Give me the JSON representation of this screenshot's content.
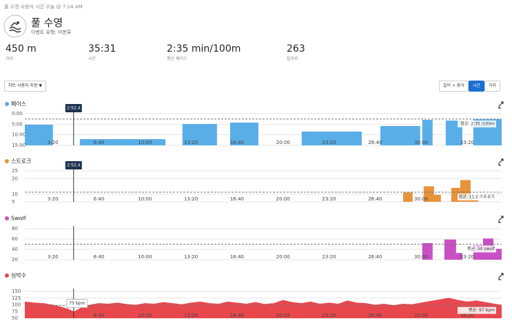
{
  "header": {
    "breadcrumb": "풀 수영",
    "breadcrumb_time": "사용자 시간 오늘 @ 7:14 AM",
    "title": "풀 수영",
    "event_type": "이벤트 유형: 미분류"
  },
  "stats": [
    {
      "value": "450 m",
      "label": "거리"
    },
    {
      "value": "35:31",
      "label": "시간"
    },
    {
      "value": "2:35 min/100m",
      "label": "평균 페이스"
    },
    {
      "value": "263",
      "label": "칼로리"
    }
  ],
  "controls": {
    "customize": "차트 사용자 지정 ▼",
    "toggles": [
      "길이 + 휴식",
      "시간",
      "거리"
    ],
    "active_toggle": 1
  },
  "chart_data": [
    {
      "type": "bar",
      "name": "페이스",
      "color": "#5aaee8",
      "y_inverted": true,
      "xlim": [
        78,
        2150
      ],
      "xticks": [
        {
          "value": 200,
          "label": "3:20"
        },
        {
          "value": 400,
          "label": "6:40"
        },
        {
          "value": 600,
          "label": "10:00"
        },
        {
          "value": 800,
          "label": "13:20"
        },
        {
          "value": 1000,
          "label": "16:40"
        },
        {
          "value": 1200,
          "label": "20:00"
        },
        {
          "value": 1400,
          "label": "23:20"
        },
        {
          "value": 1600,
          "label": "26:40"
        },
        {
          "value": 1800,
          "label": "30:00"
        },
        {
          "value": 2000,
          "label": "33:20"
        }
      ],
      "ylim": [
        0,
        900
      ],
      "yticks": [
        {
          "value": 0,
          "label": "0:00"
        },
        {
          "value": 300,
          "label": "5:00"
        },
        {
          "value": 600,
          "label": "10:00"
        },
        {
          "value": 900,
          "label": "15:00"
        }
      ],
      "x_start": [
        78,
        317,
        763,
        970,
        1281,
        1623,
        1805,
        1907,
        2027
      ],
      "x_end": [
        200,
        689,
        913,
        1093,
        1542,
        1796,
        1850,
        1979,
        2150
      ],
      "values": [
        313,
        724,
        293,
        254,
        509,
        352,
        176,
        196,
        157
      ],
      "avg_value": 155,
      "avg_label": "평균: 2:35 /100m",
      "cursor": {
        "x": 290,
        "label": "2:52.4",
        "style": "dark"
      }
    },
    {
      "type": "bar",
      "name": "스트로크",
      "color": "#e8923a",
      "xlim": [
        78,
        2150
      ],
      "xticks": [
        {
          "value": 200,
          "label": "3:20"
        },
        {
          "value": 400,
          "label": "6:40"
        },
        {
          "value": 600,
          "label": "10:00"
        },
        {
          "value": 800,
          "label": "13:20"
        },
        {
          "value": 1000,
          "label": "16:40"
        },
        {
          "value": 1200,
          "label": "20:00"
        },
        {
          "value": 1400,
          "label": "23:20"
        },
        {
          "value": 1600,
          "label": "26:40"
        },
        {
          "value": 1800,
          "label": "30:00"
        },
        {
          "value": 2000,
          "label": "33:20"
        }
      ],
      "ylim": [
        5,
        25
      ],
      "yticks": [
        5,
        10,
        20,
        25
      ],
      "x_start": [
        1722,
        1811,
        1856,
        1931,
        1970,
        2015
      ],
      "x_end": [
        1763,
        1856,
        1886,
        1970,
        2015,
        2048
      ],
      "values": [
        11,
        15,
        9.5,
        14,
        19,
        6.5
      ],
      "avg_value": 11.2,
      "avg_label": "평균: 11.2 스트로크",
      "cursor": {
        "x": 290,
        "label": "2:52.4",
        "style": "dark"
      }
    },
    {
      "type": "bar",
      "name": "Swolf",
      "color": "#c94fc4",
      "xlim": [
        78,
        2150
      ],
      "xticks": [
        {
          "value": 200,
          "label": "3:20"
        },
        {
          "value": 400,
          "label": "6:40"
        },
        {
          "value": 600,
          "label": "10:00"
        },
        {
          "value": 800,
          "label": "13:20"
        },
        {
          "value": 1000,
          "label": "16:40"
        },
        {
          "value": 1200,
          "label": "20:00"
        },
        {
          "value": 1400,
          "label": "23:20"
        },
        {
          "value": 1600,
          "label": "26:40"
        },
        {
          "value": 1800,
          "label": "30:00"
        },
        {
          "value": 2000,
          "label": "33:20"
        }
      ],
      "ylim": [
        20,
        80
      ],
      "yticks": [
        20,
        40,
        60,
        80
      ],
      "x_start": [
        1805,
        1901,
        1952,
        2027,
        2069,
        2114
      ],
      "x_end": [
        1850,
        1952,
        1979,
        2069,
        2114,
        2150
      ],
      "values": [
        52,
        59,
        33,
        48,
        61,
        41
      ],
      "avg_value": 50,
      "avg_label": "평균: 50 swolf",
      "cursor": {
        "x": 290
      }
    },
    {
      "type": "area",
      "name": "심박수",
      "color": "#e8474e",
      "xlim": [
        78,
        2150
      ],
      "xticks": [
        {
          "value": 400,
          "label": "6:40"
        },
        {
          "value": 600,
          "label": "10:00"
        },
        {
          "value": 800,
          "label": "13:20"
        },
        {
          "value": 1000,
          "label": "16:40"
        },
        {
          "value": 1200,
          "label": "20:00"
        },
        {
          "value": 1400,
          "label": "23:20"
        },
        {
          "value": 1600,
          "label": "26:40"
        },
        {
          "value": 1800,
          "label": "30:00"
        },
        {
          "value": 2000,
          "label": "33:20"
        }
      ],
      "ylim": [
        50,
        150
      ],
      "yticks": [
        50,
        75,
        100,
        125,
        150
      ],
      "x": [
        78,
        120,
        160,
        200,
        240,
        270,
        290,
        320,
        360,
        400,
        440,
        480,
        520,
        560,
        600,
        640,
        680,
        720,
        760,
        800,
        840,
        880,
        920,
        960,
        1000,
        1040,
        1080,
        1120,
        1160,
        1200,
        1240,
        1280,
        1320,
        1360,
        1400,
        1440,
        1480,
        1520,
        1560,
        1600,
        1640,
        1680,
        1720,
        1760,
        1800,
        1840,
        1880,
        1920,
        1960,
        2000,
        2040,
        2080,
        2120,
        2150
      ],
      "values": [
        112,
        108,
        106,
        100,
        92,
        84,
        75,
        88,
        100,
        106,
        104,
        108,
        103,
        100,
        106,
        104,
        110,
        106,
        102,
        108,
        112,
        106,
        104,
        112,
        108,
        104,
        110,
        103,
        106,
        118,
        110,
        106,
        112,
        104,
        108,
        104,
        116,
        108,
        106,
        100,
        104,
        98,
        104,
        102,
        108,
        114,
        120,
        126,
        118,
        112,
        116,
        110,
        104,
        100
      ],
      "avg_value": 97,
      "avg_label": "평균: 97 bpm",
      "cursor": {
        "x": 290,
        "label": "75 bpm",
        "style": "light"
      }
    }
  ]
}
